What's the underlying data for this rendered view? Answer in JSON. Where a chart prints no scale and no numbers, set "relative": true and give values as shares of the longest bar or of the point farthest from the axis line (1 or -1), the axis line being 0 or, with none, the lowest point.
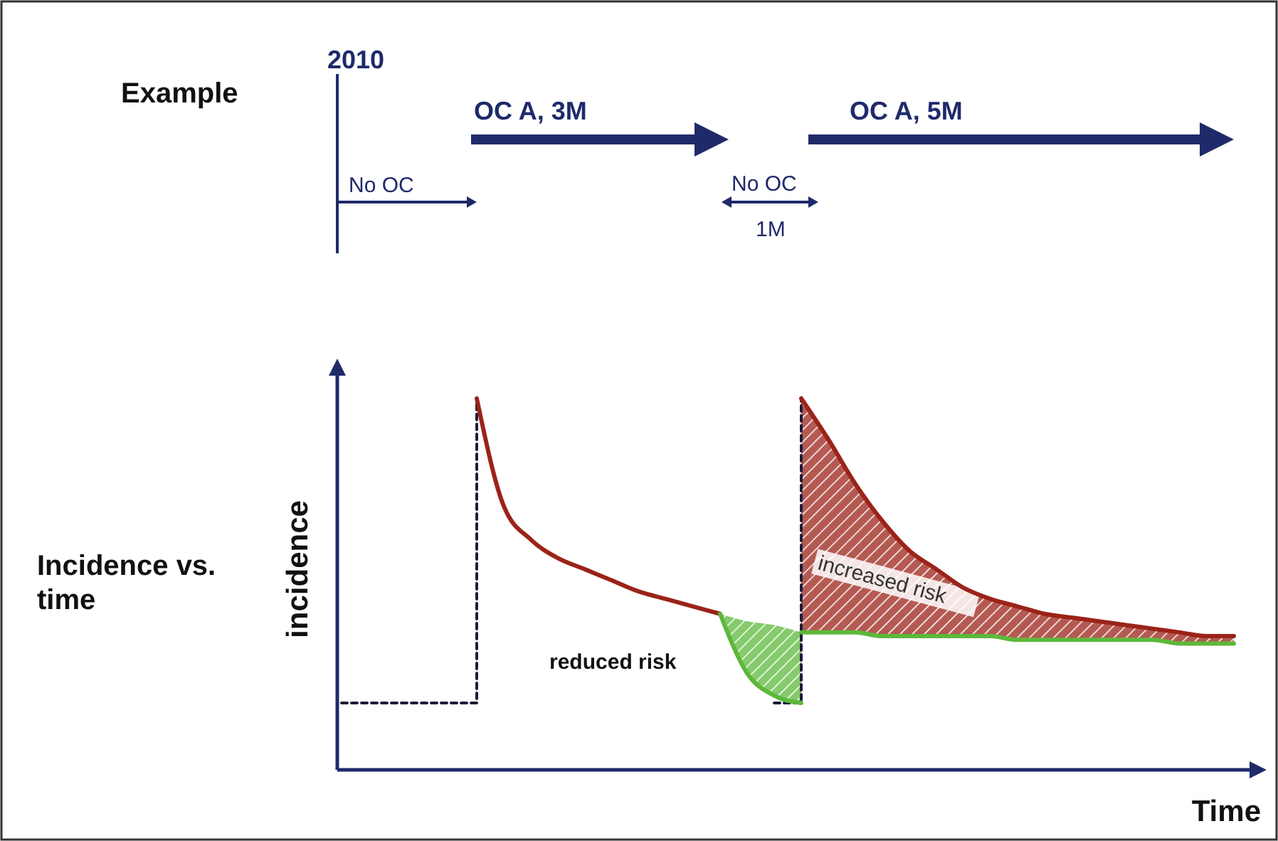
{
  "chart_data": {
    "type": "line",
    "relative": true,
    "title": "Incidence vs. time",
    "xlabel": "Time",
    "ylabel": "incidence",
    "categories": [
      null,
      null,
      null,
      null,
      null,
      null,
      null,
      null,
      null,
      null,
      null,
      null,
      null,
      null,
      null,
      null,
      null,
      null,
      null,
      null,
      null,
      null,
      null,
      null,
      null,
      null,
      null,
      null,
      null,
      null,
      null,
      null,
      null,
      null
    ],
    "series": [
      {
        "type": "step",
        "line_style": "dashed",
        "color": "#1c1c3a",
        "values": [
          0.18,
          0.18,
          0.18,
          0.18,
          0.18,
          1.0,
          null,
          null,
          null,
          null,
          null,
          null,
          null,
          null,
          null,
          null,
          0.18,
          1.0,
          null,
          null,
          null,
          null,
          null,
          null,
          null,
          null,
          null,
          null,
          null,
          null,
          null,
          null,
          null,
          null
        ]
      },
      {
        "color": "#9b2318",
        "values": [
          null,
          null,
          null,
          null,
          null,
          1.0,
          0.71,
          0.62,
          0.57,
          0.54,
          0.51,
          0.48,
          0.46,
          0.44,
          0.42,
          null,
          null,
          null,
          null,
          null,
          null,
          null,
          null,
          null,
          null,
          null,
          null,
          null,
          null,
          null,
          null,
          null,
          null,
          null
        ]
      },
      {
        "color": "#5cb83a",
        "values": [
          null,
          null,
          null,
          null,
          null,
          null,
          null,
          null,
          null,
          null,
          null,
          null,
          null,
          null,
          0.42,
          0.26,
          0.2,
          0.18,
          null,
          null,
          null,
          null,
          null,
          null,
          null,
          null,
          null,
          null,
          null,
          null,
          null,
          null,
          null,
          null
        ],
        "lower": [
          null,
          null,
          null,
          null,
          null,
          null,
          null,
          null,
          null,
          null,
          null,
          null,
          null,
          null,
          0.42,
          0.26,
          0.2,
          0.18,
          null,
          null,
          null,
          null,
          null,
          null,
          null,
          null,
          null,
          null,
          null,
          null,
          null,
          null,
          null,
          null
        ],
        "upper": [
          null,
          null,
          null,
          null,
          null,
          null,
          null,
          null,
          null,
          null,
          null,
          null,
          null,
          null,
          0.42,
          0.4,
          0.39,
          0.37,
          null,
          null,
          null,
          null,
          null,
          null,
          null,
          null,
          null,
          null,
          null,
          null,
          null,
          null,
          null,
          null
        ]
      },
      {
        "color": "#9b2318",
        "values": [
          null,
          null,
          null,
          null,
          null,
          null,
          null,
          null,
          null,
          null,
          null,
          null,
          null,
          null,
          null,
          null,
          null,
          1.0,
          0.89,
          0.77,
          0.67,
          0.59,
          0.54,
          0.49,
          0.46,
          0.44,
          0.42,
          0.41,
          0.4,
          0.39,
          0.38,
          0.37,
          0.36,
          0.36
        ],
        "lower": [
          null,
          null,
          null,
          null,
          null,
          null,
          null,
          null,
          null,
          null,
          null,
          null,
          null,
          null,
          null,
          null,
          null,
          0.37,
          0.37,
          0.37,
          0.36,
          0.36,
          0.36,
          0.36,
          0.36,
          0.35,
          0.35,
          0.35,
          0.35,
          0.35,
          0.35,
          0.34,
          0.34,
          0.34
        ],
        "upper": [
          null,
          null,
          null,
          null,
          null,
          null,
          null,
          null,
          null,
          null,
          null,
          null,
          null,
          null,
          null,
          null,
          null,
          1.0,
          0.89,
          0.77,
          0.67,
          0.59,
          0.54,
          0.49,
          0.46,
          0.44,
          0.42,
          0.41,
          0.4,
          0.39,
          0.38,
          0.37,
          0.36,
          0.36
        ]
      },
      {
        "color": "#5cb83a",
        "values": [
          null,
          null,
          null,
          null,
          null,
          null,
          null,
          null,
          null,
          null,
          null,
          null,
          null,
          null,
          null,
          null,
          null,
          0.37,
          0.37,
          0.37,
          0.36,
          0.36,
          0.36,
          0.36,
          0.36,
          0.35,
          0.35,
          0.35,
          0.35,
          0.35,
          0.35,
          0.34,
          0.34,
          0.34
        ]
      }
    ],
    "annotations": [
      "Example",
      "2010",
      "No OC",
      "OC A, 3M",
      "No OC",
      "1M",
      "OC A, 5M",
      "reduced risk",
      "increased risk"
    ],
    "marker": "none"
  }
}
